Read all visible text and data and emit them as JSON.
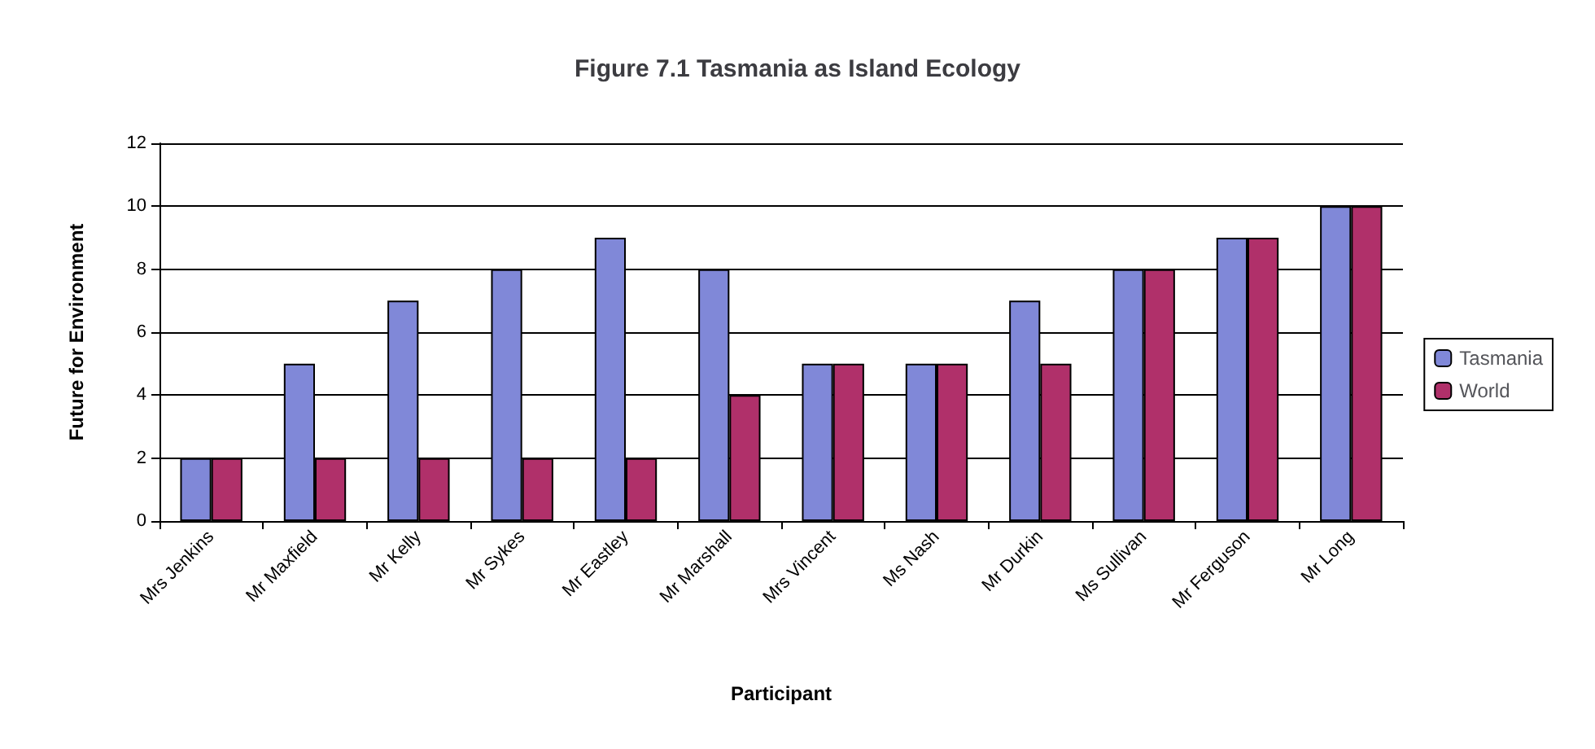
{
  "chart_data": {
    "type": "bar",
    "title": "Figure 7.1 Tasmania as Island Ecology",
    "xlabel": "Participant",
    "ylabel": "Future for Environment",
    "categories": [
      "Mrs Jenkins",
      "Mr Maxfield",
      "Mr Kelly",
      "Mr Sykes",
      "Mr Eastley",
      "Mr Marshall",
      "Mrs Vincent",
      "Ms Nash",
      "Mr Durkin",
      "Ms Sullivan",
      "Mr Ferguson",
      "Mr Long"
    ],
    "series": [
      {
        "name": "Tasmania",
        "color": "#8088d8",
        "values": [
          2,
          5,
          7,
          8,
          9,
          8,
          5,
          5,
          7,
          8,
          9,
          10
        ]
      },
      {
        "name": "World",
        "color": "#b0306a",
        "values": [
          2,
          2,
          2,
          2,
          2,
          4,
          5,
          5,
          5,
          8,
          9,
          10
        ]
      }
    ],
    "ylim": [
      0,
      12
    ],
    "yticks": [
      0,
      2,
      4,
      6,
      8,
      10,
      12
    ],
    "grid": "y",
    "legend": "right"
  }
}
